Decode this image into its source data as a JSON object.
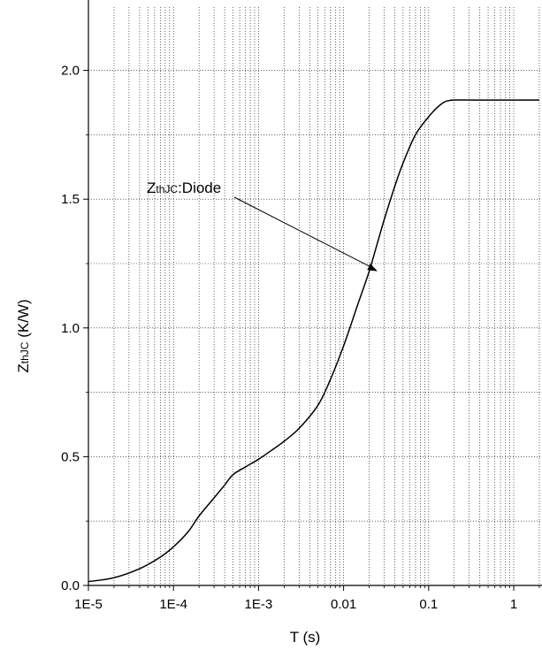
{
  "chart_data": {
    "type": "line",
    "title": "",
    "xlabel": "T (s)",
    "ylabel": {
      "main": "Z",
      "sub": "thJC",
      "rest": " (K/W)"
    },
    "x_scale": "log",
    "xlim": [
      1e-05,
      2
    ],
    "ylim": [
      0,
      2.0
    ],
    "x_ticks": [
      {
        "value": 1e-05,
        "label": "1E-5"
      },
      {
        "value": 0.0001,
        "label": "1E-4"
      },
      {
        "value": 0.001,
        "label": "1E-3"
      },
      {
        "value": 0.01,
        "label": "0.01"
      },
      {
        "value": 0.1,
        "label": "0.1"
      },
      {
        "value": 1,
        "label": "1"
      }
    ],
    "y_ticks": [
      {
        "value": 0.0,
        "label": "0.0"
      },
      {
        "value": 0.5,
        "label": "0.5"
      },
      {
        "value": 1.0,
        "label": "1.0"
      },
      {
        "value": 1.5,
        "label": "1.5"
      },
      {
        "value": 2.0,
        "label": "2.0"
      }
    ],
    "grid": true,
    "series": [
      {
        "x": [
          1e-05,
          2e-05,
          4e-05,
          7e-05,
          0.0001,
          0.00015,
          0.0002,
          0.0003,
          0.0004,
          0.0005,
          0.0007,
          0.001,
          0.0015,
          0.002,
          0.003,
          0.005,
          0.007,
          0.01,
          0.015,
          0.02,
          0.025,
          0.03,
          0.04,
          0.05,
          0.07,
          0.1,
          0.13,
          0.16,
          0.2,
          0.3,
          0.5,
          1,
          2
        ],
        "y": [
          0.015,
          0.03,
          0.065,
          0.11,
          0.15,
          0.21,
          0.27,
          0.34,
          0.39,
          0.43,
          0.46,
          0.49,
          0.53,
          0.56,
          0.61,
          0.7,
          0.8,
          0.93,
          1.1,
          1.22,
          1.33,
          1.42,
          1.55,
          1.64,
          1.75,
          1.82,
          1.86,
          1.88,
          1.885,
          1.885,
          1.885,
          1.885,
          1.885
        ],
        "color": "#000000"
      }
    ],
    "annotation": {
      "main": "Z",
      "sub": "thJC",
      "rest": ":Diode",
      "x": 0.025,
      "y": 1.22
    }
  }
}
